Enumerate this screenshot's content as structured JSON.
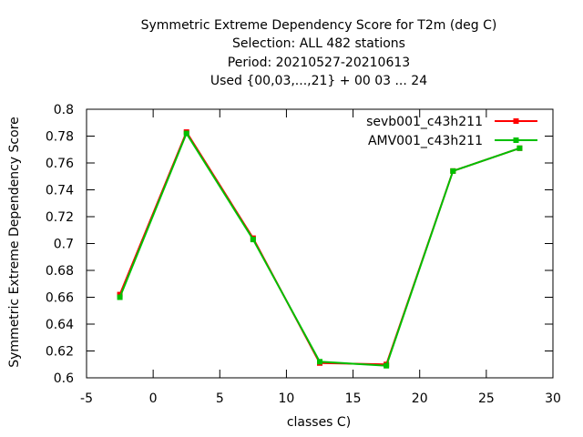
{
  "chart_data": {
    "type": "line",
    "title_lines": [
      "Symmetric Extreme Dependency Score  for T2m (deg C)",
      "Selection: ALL    482 stations",
      "Period: 20210527-20210613",
      "Used {00,03,...,21} + 00 03 ... 24"
    ],
    "xlabel": "classes C)",
    "ylabel": "Symmetric Extreme Dependency Score",
    "xlim": [
      -5,
      30
    ],
    "ylim": [
      0.6,
      0.8
    ],
    "xticks": [
      -5,
      0,
      5,
      10,
      15,
      20,
      25,
      30
    ],
    "yticks": [
      0.6,
      0.62,
      0.64,
      0.66,
      0.68,
      0.7,
      0.72,
      0.74,
      0.76,
      0.78,
      0.8
    ],
    "xtick_labels": [
      "-5",
      "0",
      "5",
      "10",
      "15",
      "20",
      "25",
      "30"
    ],
    "ytick_labels": [
      "0.6",
      "0.62",
      "0.64",
      "0.66",
      "0.68",
      "0.7",
      "0.72",
      "0.74",
      "0.76",
      "0.78",
      "0.8"
    ],
    "grid": false,
    "legend_position": "top-right",
    "x": [
      -2.5,
      2.5,
      7.5,
      12.5,
      17.5,
      22.5,
      27.5
    ],
    "series": [
      {
        "name": "sevb001_c43h211",
        "color": "#ff0000",
        "values": [
          0.662,
          0.783,
          0.704,
          0.611,
          0.61,
          0.754,
          0.771
        ]
      },
      {
        "name": "AMV001_c43h211",
        "color": "#00c000",
        "values": [
          0.66,
          0.782,
          0.703,
          0.612,
          0.609,
          0.754,
          0.771
        ]
      }
    ]
  }
}
